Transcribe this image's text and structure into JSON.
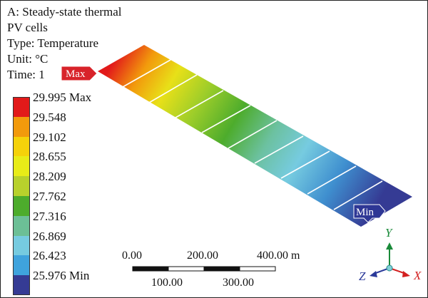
{
  "info": {
    "line1": "A: Steady-state thermal",
    "line2": "PV cells",
    "line3": "Type: Temperature",
    "line4": "Unit: °C",
    "line5": "Time: 1"
  },
  "legend": [
    {
      "label": "29.995 Max",
      "color": "#e21a1a"
    },
    {
      "label": "29.548",
      "color": "#f29a0c"
    },
    {
      "label": "29.102",
      "color": "#f5d20a"
    },
    {
      "label": "28.655",
      "color": "#e8ec18"
    },
    {
      "label": "28.209",
      "color": "#b8d12c"
    },
    {
      "label": "27.762",
      "color": "#4dac2c"
    },
    {
      "label": "27.316",
      "color": "#6cbf96"
    },
    {
      "label": "26.869",
      "color": "#76cbe0"
    },
    {
      "label": "26.423",
      "color": "#3fa3dd"
    },
    {
      "label": "25.976 Min",
      "color": "#353b94"
    }
  ],
  "markers": {
    "max_label": "Max",
    "min_label": "Min",
    "max_color": "#d8232a",
    "min_color": "#2e3795"
  },
  "scale": {
    "top_labels": [
      "0.00",
      "200.00",
      "400.00 m"
    ],
    "bottom_labels": [
      "100.00",
      "300.00"
    ]
  },
  "axes": {
    "y": "Y",
    "z": "Z",
    "x": "X",
    "y_color": "#1a8a3a",
    "z_color": "#2b3a9a",
    "x_color": "#d32020"
  }
}
